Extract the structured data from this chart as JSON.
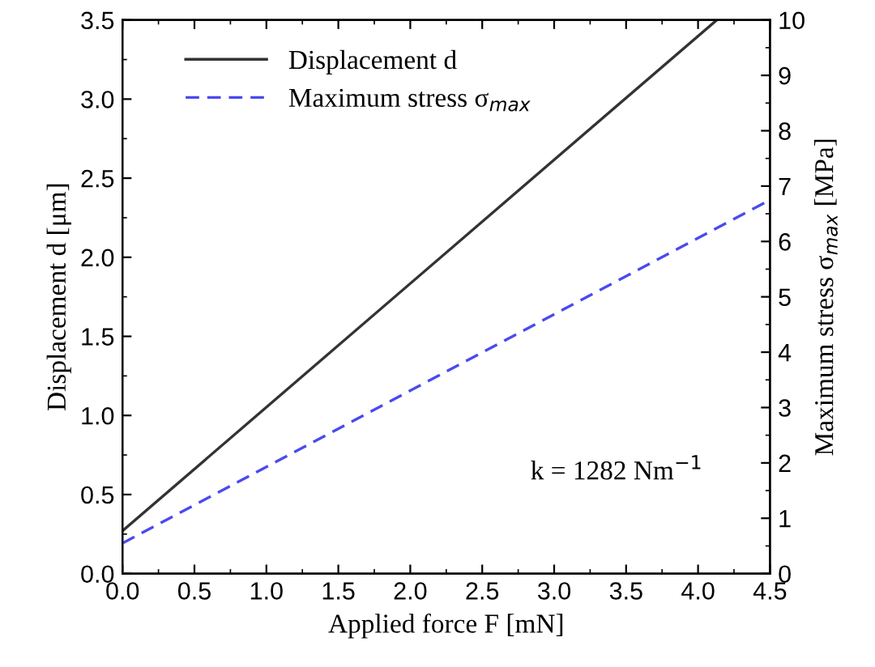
{
  "chart_data": {
    "type": "line",
    "xlabel": "Applied force F [mN]",
    "ylabel": "Displacement d [μm]",
    "y2label": "Maximum stress σ$_{max}$ [MPa]",
    "x": [
      0,
      4.5
    ],
    "series": [
      {
        "name": "Displacement d",
        "color": "#333333",
        "line_style": "solid",
        "x": [
          0,
          4.13
        ],
        "values": [
          0.27,
          3.5
        ]
      },
      {
        "name": "Maximum stress σ$_{max}$",
        "color": "#4a4af0",
        "line_style": "dashed",
        "axis": "y2",
        "values": [
          0.55,
          6.75
        ]
      }
    ],
    "xlim": [
      0,
      4.5
    ],
    "xticks": [
      {
        "value": 0,
        "label": "0.0"
      },
      0.5,
      {
        "value": 1,
        "label": "1.0"
      },
      1.5,
      {
        "value": 2,
        "label": "2.0"
      },
      2.5,
      {
        "value": 3,
        "label": "3.0"
      },
      3.5,
      {
        "value": 4,
        "label": "4.0"
      },
      4.5
    ],
    "ylim": [
      0,
      3.5
    ],
    "yticks": [
      {
        "value": 0,
        "label": "0.0"
      },
      0.5,
      {
        "value": 1,
        "label": "1.0"
      },
      1.5,
      {
        "value": 2,
        "label": "2.0"
      },
      2.5,
      {
        "value": 3,
        "label": "3.0"
      },
      3.5
    ],
    "y2lim": [
      0,
      10
    ],
    "y2ticks": [
      0,
      1,
      2,
      3,
      4,
      5,
      6,
      7,
      8,
      9,
      10
    ],
    "annotations": [
      "k = 1282 Nm$^{−1}$"
    ],
    "legend": "top left",
    "grid": false,
    "marker": "none"
  }
}
